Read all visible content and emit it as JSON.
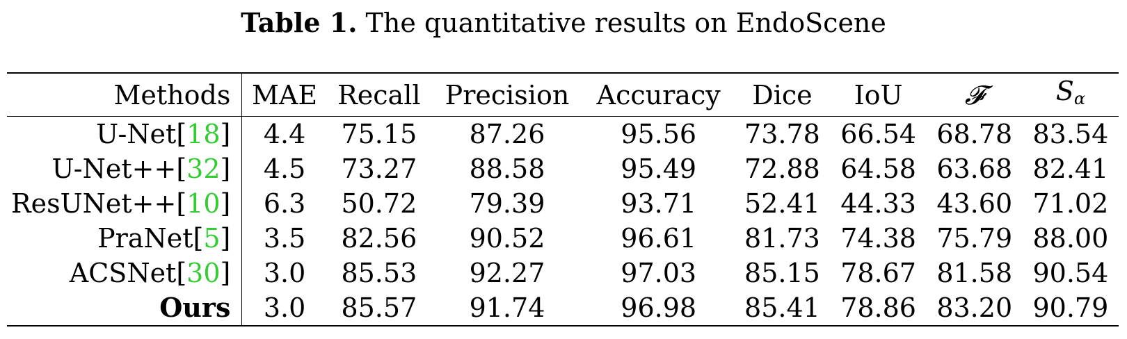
{
  "caption": {
    "label": "Table 1.",
    "text": "The quantitative results on EndoScene"
  },
  "table": {
    "headers": {
      "methods": "Methods",
      "mae": "MAE",
      "recall": "Recall",
      "precision": "Precision",
      "accuracy": "Accuracy",
      "dice": "Dice",
      "iou": "IoU",
      "f": "𝓕",
      "s_base": "S",
      "s_sub": "α"
    },
    "rows": [
      {
        "method": "U-Net",
        "cite": "18",
        "values": [
          "4.4",
          "75.15",
          "87.26",
          "95.56",
          "73.78",
          "66.54",
          "68.78",
          "83.54"
        ],
        "bold": [
          false,
          false,
          false,
          false,
          false,
          false,
          false,
          false
        ]
      },
      {
        "method": "U-Net++",
        "cite": "32",
        "values": [
          "4.5",
          "73.27",
          "88.58",
          "95.49",
          "72.88",
          "64.58",
          "63.68",
          "82.41"
        ],
        "bold": [
          false,
          false,
          false,
          false,
          false,
          false,
          false,
          false
        ]
      },
      {
        "method": "ResUNet++",
        "cite": "10",
        "values": [
          "6.3",
          "50.72",
          "79.39",
          "93.71",
          "52.41",
          "44.33",
          "43.60",
          "71.02"
        ],
        "bold": [
          false,
          false,
          false,
          false,
          false,
          false,
          false,
          false
        ]
      },
      {
        "method": "PraNet",
        "cite": "5",
        "values": [
          "3.5",
          "82.56",
          "90.52",
          "96.61",
          "81.73",
          "74.38",
          "75.79",
          "88.00"
        ],
        "bold": [
          false,
          false,
          false,
          false,
          false,
          false,
          false,
          false
        ]
      },
      {
        "method": "ACSNet",
        "cite": "30",
        "values": [
          "3.0",
          "85.53",
          "92.27",
          "97.03",
          "85.15",
          "78.67",
          "81.58",
          "90.54"
        ],
        "bold": [
          false,
          false,
          true,
          true,
          false,
          false,
          false,
          false
        ]
      },
      {
        "method": "Ours",
        "cite": "",
        "method_bold": true,
        "values": [
          "3.0",
          "85.57",
          "91.74",
          "96.98",
          "85.41",
          "78.86",
          "83.20",
          "90.79"
        ],
        "bold": [
          true,
          true,
          false,
          false,
          true,
          true,
          true,
          true
        ]
      }
    ]
  }
}
